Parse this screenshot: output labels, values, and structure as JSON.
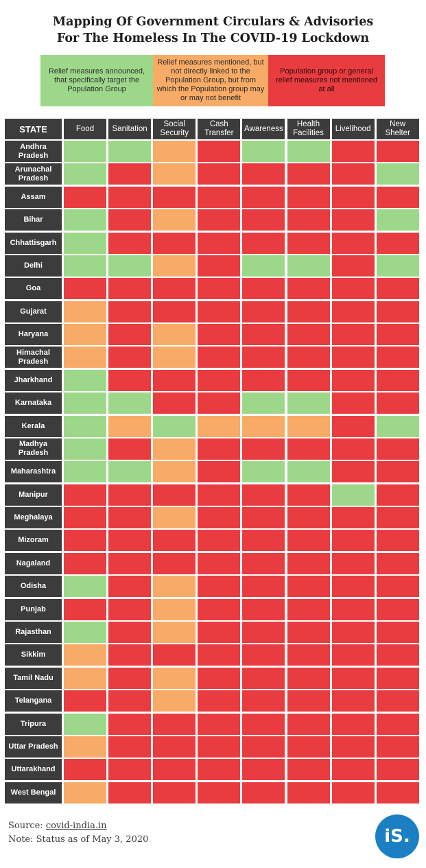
{
  "title": {
    "line1": "Mapping Of Government Circulars & Advisories",
    "line2": "For The Homeless In The COVID-19 Lockdown"
  },
  "colors": {
    "green": "#9dd88a",
    "orange": "#f8ab66",
    "red": "#e83c41",
    "header_bg": "#3c3c3c",
    "logo": "#1b7fc4"
  },
  "legend": [
    {
      "key": "green",
      "text": "Relief measures announced, that specifically target the Population Group"
    },
    {
      "key": "orange",
      "text": "Relief measures mentioned, but not directly linked to the Population Group, but from which the Population group may or may not benefit"
    },
    {
      "key": "red",
      "text": "Population group or general relief measures not mentioned at all"
    }
  ],
  "chart_data": {
    "type": "heatmap",
    "row_header": "STATE",
    "columns": [
      "Food",
      "Sanitation",
      "Social Security",
      "Cash Transfer",
      "Awareness",
      "Health Facilities",
      "Livelihood",
      "New Shelter"
    ],
    "rows": [
      {
        "state": "Andhra Pradesh",
        "values": [
          "G",
          "G",
          "O",
          "R",
          "G",
          "G",
          "R",
          "R"
        ]
      },
      {
        "state": "Arunachal Pradesh",
        "values": [
          "G",
          "R",
          "O",
          "R",
          "R",
          "R",
          "R",
          "G"
        ]
      },
      {
        "state": "Assam",
        "values": [
          "R",
          "R",
          "R",
          "R",
          "R",
          "R",
          "R",
          "R"
        ]
      },
      {
        "state": "Bihar",
        "values": [
          "G",
          "R",
          "O",
          "R",
          "R",
          "R",
          "R",
          "G"
        ]
      },
      {
        "state": "Chhattisgarh",
        "values": [
          "G",
          "R",
          "R",
          "R",
          "R",
          "R",
          "R",
          "R"
        ]
      },
      {
        "state": "Delhi",
        "values": [
          "G",
          "G",
          "O",
          "R",
          "G",
          "G",
          "R",
          "G"
        ]
      },
      {
        "state": "Goa",
        "values": [
          "R",
          "R",
          "R",
          "R",
          "R",
          "R",
          "R",
          "R"
        ]
      },
      {
        "state": "Gujarat",
        "values": [
          "O",
          "R",
          "R",
          "R",
          "R",
          "R",
          "R",
          "R"
        ]
      },
      {
        "state": "Haryana",
        "values": [
          "O",
          "R",
          "O",
          "R",
          "R",
          "R",
          "R",
          "R"
        ]
      },
      {
        "state": "Himachal Pradesh",
        "values": [
          "O",
          "R",
          "O",
          "R",
          "R",
          "R",
          "R",
          "R"
        ]
      },
      {
        "state": "Jharkhand",
        "values": [
          "G",
          "R",
          "R",
          "R",
          "R",
          "R",
          "R",
          "R"
        ]
      },
      {
        "state": "Karnataka",
        "values": [
          "G",
          "G",
          "R",
          "R",
          "G",
          "G",
          "R",
          "R"
        ]
      },
      {
        "state": "Kerala",
        "values": [
          "G",
          "O",
          "G",
          "O",
          "O",
          "O",
          "R",
          "G"
        ]
      },
      {
        "state": "Madhya Pradesh",
        "values": [
          "G",
          "R",
          "O",
          "R",
          "R",
          "R",
          "R",
          "R"
        ]
      },
      {
        "state": "Maharashtra",
        "values": [
          "G",
          "G",
          "O",
          "R",
          "G",
          "G",
          "R",
          "R"
        ]
      },
      {
        "state": "Manipur",
        "values": [
          "R",
          "R",
          "R",
          "R",
          "R",
          "R",
          "G",
          "R"
        ]
      },
      {
        "state": "Meghalaya",
        "values": [
          "R",
          "R",
          "O",
          "R",
          "R",
          "R",
          "R",
          "R"
        ]
      },
      {
        "state": "Mizoram",
        "values": [
          "R",
          "R",
          "R",
          "R",
          "R",
          "R",
          "R",
          "R"
        ]
      },
      {
        "state": "Nagaland",
        "values": [
          "R",
          "R",
          "R",
          "R",
          "R",
          "R",
          "R",
          "R"
        ]
      },
      {
        "state": "Odisha",
        "values": [
          "G",
          "R",
          "O",
          "R",
          "R",
          "R",
          "R",
          "R"
        ]
      },
      {
        "state": "Punjab",
        "values": [
          "R",
          "R",
          "O",
          "R",
          "R",
          "R",
          "R",
          "R"
        ]
      },
      {
        "state": "Rajasthan",
        "values": [
          "G",
          "R",
          "O",
          "R",
          "R",
          "R",
          "R",
          "R"
        ]
      },
      {
        "state": "Sikkim",
        "values": [
          "O",
          "R",
          "R",
          "R",
          "R",
          "R",
          "R",
          "R"
        ]
      },
      {
        "state": "Tamil Nadu",
        "values": [
          "O",
          "R",
          "O",
          "R",
          "R",
          "R",
          "R",
          "R"
        ]
      },
      {
        "state": "Telangana",
        "values": [
          "R",
          "R",
          "O",
          "R",
          "R",
          "R",
          "R",
          "R"
        ]
      },
      {
        "state": "Tripura",
        "values": [
          "G",
          "R",
          "R",
          "R",
          "R",
          "R",
          "R",
          "R"
        ]
      },
      {
        "state": "Uttar Pradesh",
        "values": [
          "O",
          "R",
          "R",
          "R",
          "R",
          "R",
          "R",
          "R"
        ]
      },
      {
        "state": "Uttarakhand",
        "values": [
          "R",
          "R",
          "R",
          "R",
          "R",
          "R",
          "R",
          "R"
        ]
      },
      {
        "state": "West Bengal",
        "values": [
          "O",
          "R",
          "R",
          "R",
          "R",
          "R",
          "R",
          "R"
        ]
      }
    ]
  },
  "footer": {
    "source_label": "Source: ",
    "source_link": "covid-india.in",
    "note": "Note: Status as of May 3, 2020"
  },
  "logo": {
    "text": "iS."
  }
}
